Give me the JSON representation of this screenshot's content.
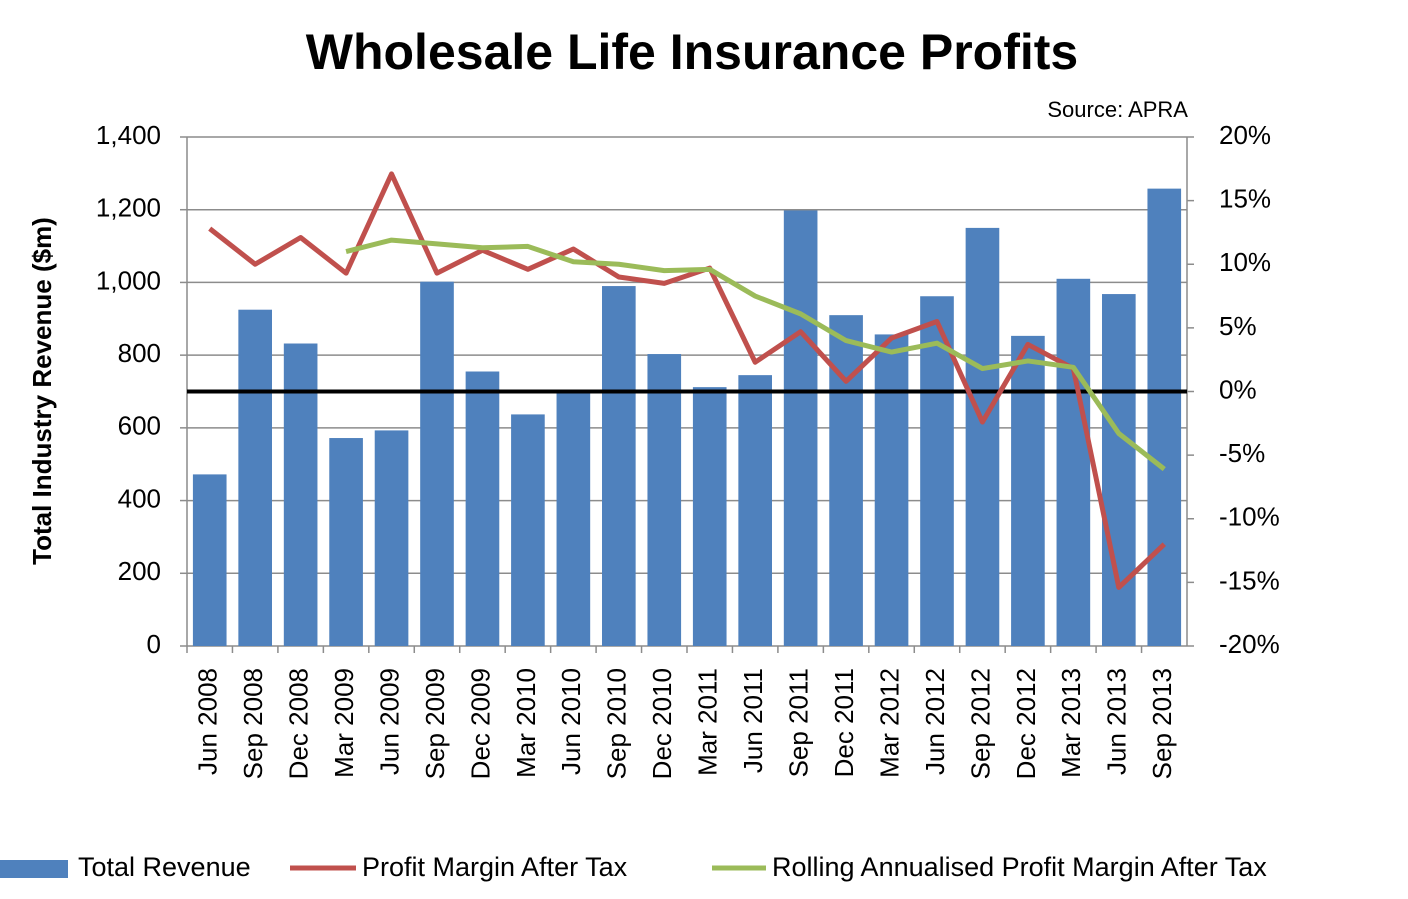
{
  "chart_data": {
    "type": "bar-line",
    "title": "Wholesale Life Insurance Profits",
    "subtitle": "Source: APRA",
    "y_label": "Total Industry Revenue ($m)",
    "categories": [
      "Jun 2008",
      "Sep 2008",
      "Dec 2008",
      "Mar 2009",
      "Jun 2009",
      "Sep 2009",
      "Dec 2009",
      "Mar 2010",
      "Jun 2010",
      "Sep 2010",
      "Dec 2010",
      "Mar 2011",
      "Jun 2011",
      "Sep 2011",
      "Dec 2011",
      "Mar 2012",
      "Jun 2012",
      "Sep 2012",
      "Dec 2012",
      "Mar 2013",
      "Jun 2013",
      "Sep 2013"
    ],
    "series": [
      {
        "name": "Total Revenue",
        "type": "bar",
        "color": "#4f81bd",
        "values": [
          472,
          925,
          832,
          572,
          593,
          1002,
          755,
          637,
          700,
          990,
          803,
          712,
          745,
          1198,
          910,
          857,
          962,
          1150,
          853,
          1010,
          968,
          1258
        ]
      },
      {
        "name": "Profit Margin After Tax",
        "type": "line",
        "axis": "y2",
        "color": "#c0504d",
        "values": [
          12.8,
          10.0,
          12.1,
          9.3,
          17.1,
          9.3,
          11.1,
          9.6,
          11.2,
          9.0,
          8.5,
          9.7,
          2.3,
          4.7,
          0.8,
          4.2,
          5.5,
          -2.4,
          3.7,
          1.8,
          -15.4,
          -12.0
        ]
      },
      {
        "name": "Rolling Annualised Profit Margin After Tax",
        "type": "line",
        "axis": "y2",
        "color": "#9bbb59",
        "values": [
          null,
          null,
          null,
          11.0,
          11.9,
          11.6,
          11.3,
          11.4,
          10.2,
          10.0,
          9.5,
          9.6,
          7.5,
          6.1,
          4.0,
          3.1,
          3.8,
          1.8,
          2.4,
          1.9,
          -3.3,
          -6.1
        ]
      }
    ],
    "ylim": [
      0,
      1400
    ],
    "yticks": [
      0,
      {
        "value": 200,
        "label": "200"
      },
      400,
      600,
      800,
      {
        "value": 1000,
        "label": "1,000"
      },
      {
        "value": 1200,
        "label": "1,200"
      },
      {
        "value": 1400,
        "label": "1,400"
      }
    ],
    "y2lim": [
      -20,
      20
    ],
    "y2ticks": [
      {
        "value": -20,
        "label": "-20%"
      },
      {
        "value": -15,
        "label": "-15%"
      },
      {
        "value": -10,
        "label": "-10%"
      },
      {
        "value": -5,
        "label": "-5%"
      },
      {
        "value": 0,
        "label": "0%"
      },
      {
        "value": 5,
        "label": "5%"
      },
      {
        "value": 10,
        "label": "10%"
      },
      {
        "value": 15,
        "label": "15%"
      },
      {
        "value": 20,
        "label": "20%"
      }
    ],
    "grid": true,
    "legend": "bottom"
  }
}
